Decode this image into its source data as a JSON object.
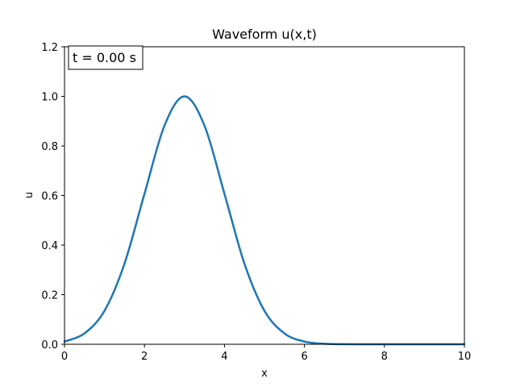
{
  "chart_data": {
    "type": "line",
    "title": "Waveform u(x,t)",
    "xlabel": "x",
    "ylabel": "u",
    "xlim": [
      0,
      10
    ],
    "ylim": [
      0,
      1.2
    ],
    "xticks": [
      0,
      2,
      4,
      6,
      8,
      10
    ],
    "yticks": [
      0.0,
      0.2,
      0.4,
      0.6,
      0.8,
      1.0,
      1.2
    ],
    "xtick_labels": [
      "0",
      "2",
      "4",
      "6",
      "8",
      "10"
    ],
    "ytick_labels": [
      "0.0",
      "0.2",
      "0.4",
      "0.6",
      "0.8",
      "1.0",
      "1.2"
    ],
    "grid": false,
    "annotation": "t = 0.00 s",
    "series": [
      {
        "color": "#1f77b4",
        "x": [
          0,
          0.5,
          1,
          1.5,
          2,
          2.5,
          3,
          3.5,
          4,
          4.5,
          5,
          5.5,
          6,
          6.5,
          7,
          7.5,
          8,
          8.5,
          9,
          9.5,
          10
        ],
        "y": [
          0.011,
          0.044,
          0.135,
          0.325,
          0.607,
          0.882,
          1.0,
          0.882,
          0.607,
          0.325,
          0.135,
          0.044,
          0.011,
          0.002,
          0.0003,
          0.0,
          0.0,
          0.0,
          0.0,
          0.0,
          0.0
        ]
      }
    ]
  }
}
